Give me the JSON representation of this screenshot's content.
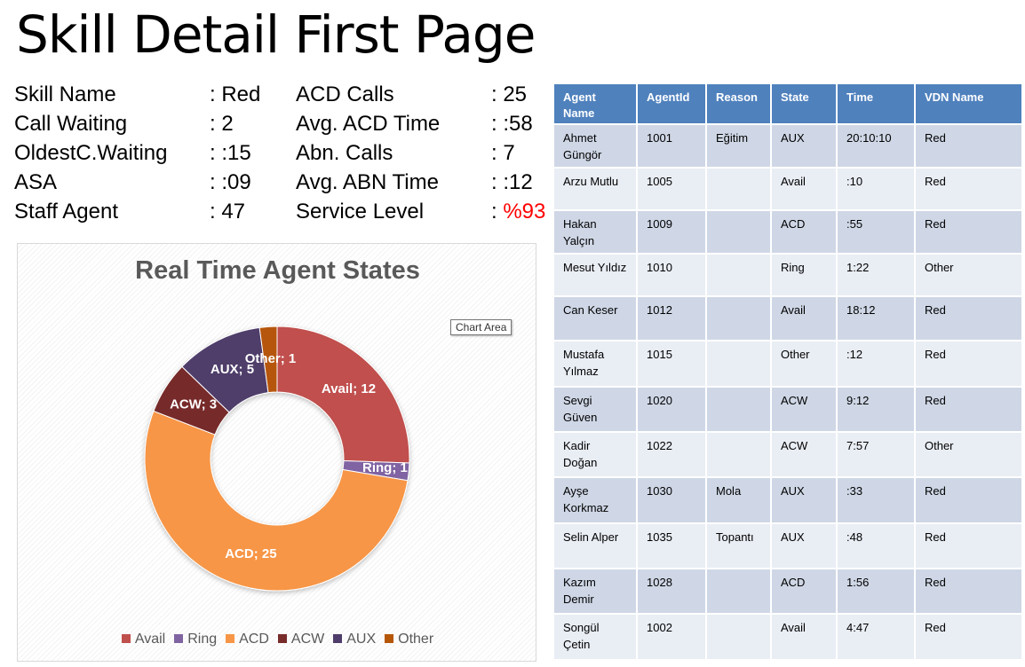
{
  "page_title": "Skill Detail First Page",
  "kpis_left": [
    {
      "label": "Skill Name",
      "value": ": Red"
    },
    {
      "label": "Call Waiting",
      "value": ": 2"
    },
    {
      "label": "OldestC.Waiting",
      "value": ": :15"
    },
    {
      "label": "ASA",
      "value": ": :09"
    },
    {
      "label": "Staff Agent",
      "value": ": 47"
    }
  ],
  "kpis_right": [
    {
      "label": "ACD Calls",
      "value": ": 25"
    },
    {
      "label": "Avg. ACD Time",
      "value": ": :58"
    },
    {
      "label": "Abn. Calls",
      "value": ": 7"
    },
    {
      "label": "Avg. ABN Time",
      "value": ": :12"
    },
    {
      "label": "Service Level",
      "value_prefix": ": ",
      "value": "%93"
    }
  ],
  "chart_tooltip": "Chart Area",
  "chart_data": {
    "type": "pie",
    "donut": true,
    "title": "Real Time Agent States",
    "categories": [
      "Avail",
      "Ring",
      "ACD",
      "ACW",
      "AUX",
      "Other"
    ],
    "values": [
      12,
      1,
      25,
      3,
      5,
      1
    ],
    "data_labels": [
      "Avail; 12",
      "Ring; 1",
      "ACD; 25",
      "ACW; 3",
      "AUX; 5",
      "Other; 1"
    ],
    "colors": [
      "#c0504d",
      "#8064a2",
      "#f79646",
      "#772c2a",
      "#4f3d6b",
      "#b65708"
    ],
    "legend": "bottom"
  },
  "table": {
    "headers": [
      "Agent Name",
      "AgentId",
      "Reason",
      "State",
      "Time",
      "VDN Name"
    ],
    "rows": [
      [
        "Ahmet Güngör",
        "1001",
        "Eğitim",
        "AUX",
        "20:10:10",
        "Red"
      ],
      [
        "Arzu Mutlu",
        "1005",
        "",
        "Avail",
        ":10",
        "Red"
      ],
      [
        "Hakan Yalçın",
        "1009",
        "",
        "ACD",
        ":55",
        "Red"
      ],
      [
        "Mesut Yıldız",
        "1010",
        "",
        "Ring",
        "1:22",
        "Other"
      ],
      [
        "Can Keser",
        "1012",
        "",
        "Avail",
        "18:12",
        "Red"
      ],
      [
        "Mustafa Yılmaz",
        "1015",
        "",
        "Other",
        ":12",
        "Red"
      ],
      [
        "Sevgi Güven",
        "1020",
        "",
        "ACW",
        "9:12",
        "Red"
      ],
      [
        "Kadir Doğan",
        "1022",
        "",
        "ACW",
        "7:57",
        "Other"
      ],
      [
        "Ayşe Korkmaz",
        "1030",
        "Mola",
        "AUX",
        ":33",
        "Red"
      ],
      [
        "Selin Alper",
        "1035",
        "Topantı",
        "AUX",
        ":48",
        "Red"
      ],
      [
        "Kazım Demir",
        "1028",
        "",
        "ACD",
        "1:56",
        "Red"
      ],
      [
        "Songül Çetin",
        "1002",
        "",
        "Avail",
        "4:47",
        "Red"
      ]
    ]
  }
}
